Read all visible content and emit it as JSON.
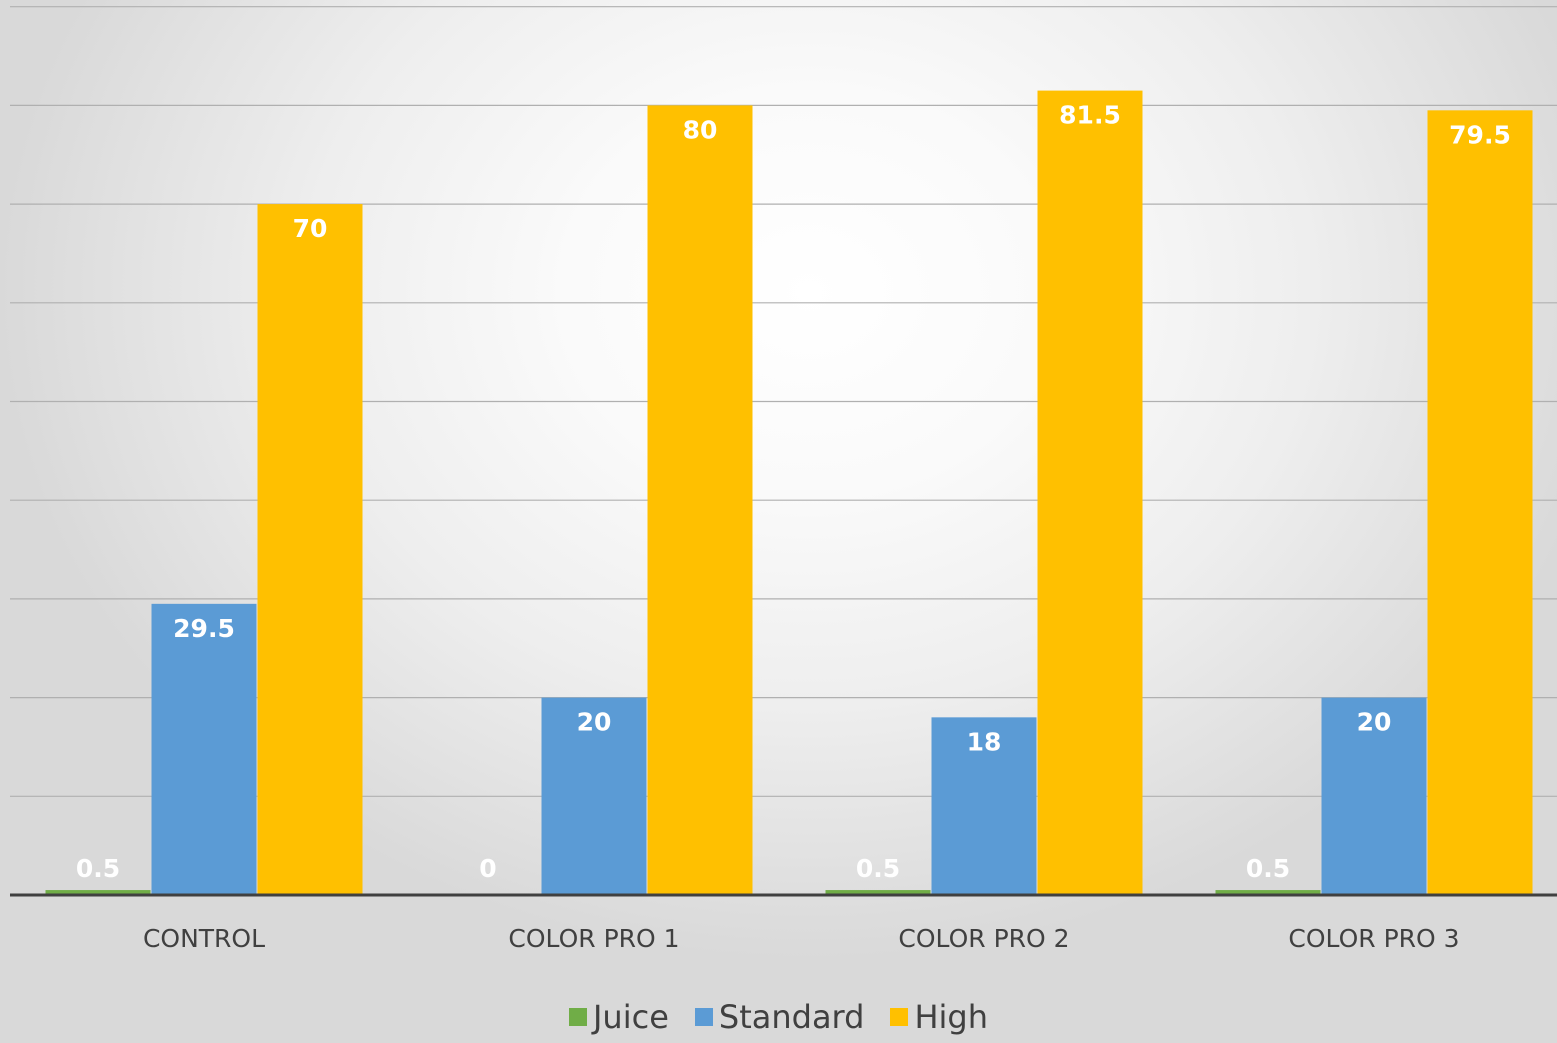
{
  "chart_data": {
    "type": "bar",
    "title": "",
    "xlabel": "",
    "ylabel": "",
    "categories": [
      "CONTROL",
      "COLOR PRO 1",
      "COLOR PRO 2",
      "COLOR PRO 3"
    ],
    "series": [
      {
        "name": "Juice",
        "values": [
          0.5,
          0,
          0.5,
          0.5
        ],
        "labels": [
          "0.5",
          "0",
          "0.5",
          "0.5"
        ],
        "color": "#70ad47"
      },
      {
        "name": "Standard",
        "values": [
          29.5,
          20,
          18,
          20
        ],
        "labels": [
          "29.5",
          "20",
          "18",
          "20"
        ],
        "color": "#5b9bd5"
      },
      {
        "name": "High",
        "values": [
          70,
          80,
          81.5,
          79.5
        ],
        "labels": [
          "70",
          "80",
          "81.5",
          "79.5"
        ],
        "color": "#ffc000"
      }
    ],
    "ylim": [
      0,
      90
    ],
    "y_gridline_step": 10,
    "y_tick_labels_visible": false,
    "grid": true,
    "data_labels": true,
    "data_label_color": "#ffffff",
    "gridline_color": "#b0b0b0",
    "axis_color": "#404040",
    "legend_position": "bottom"
  }
}
